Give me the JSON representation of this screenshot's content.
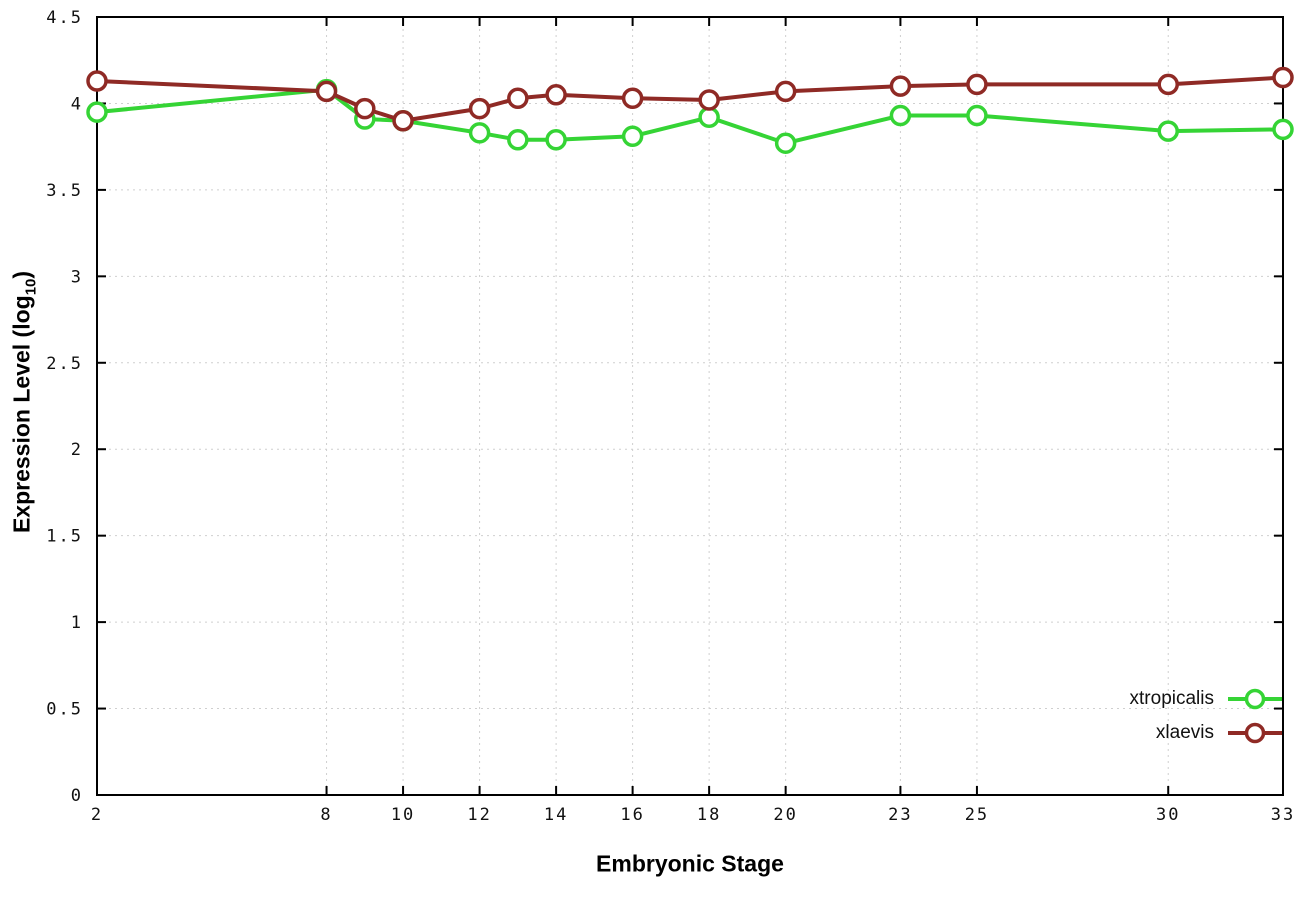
{
  "chart_data": {
    "type": "line",
    "title": "",
    "xlabel": "Embryonic Stage",
    "ylabel_prefix": "Expression Level (log",
    "ylabel_sub": "10",
    "ylabel_suffix": ")",
    "xlim": [
      2,
      33
    ],
    "ylim": [
      0,
      4.5
    ],
    "x_ticks": [
      2,
      8,
      10,
      12,
      14,
      16,
      18,
      20,
      23,
      25,
      30,
      33
    ],
    "y_ticks": [
      0,
      0.5,
      1,
      1.5,
      2,
      2.5,
      3,
      3.5,
      4,
      4.5
    ],
    "y_tick_labels": [
      "0",
      "0.5",
      "1",
      "1.5",
      "2",
      "2.5",
      "3",
      "3.5",
      "4",
      "4.5"
    ],
    "grid": true,
    "legend_position": "bottom-right",
    "x": [
      2,
      8,
      9,
      10,
      12,
      13,
      14,
      16,
      18,
      20,
      23,
      25,
      30,
      33
    ],
    "series": [
      {
        "name": "xtropicalis",
        "color": "#35d435",
        "values": [
          3.95,
          4.08,
          3.91,
          3.9,
          3.83,
          3.79,
          3.79,
          3.81,
          3.92,
          3.77,
          3.93,
          3.93,
          3.84,
          3.85
        ]
      },
      {
        "name": "xlaevis",
        "color": "#8f2a25",
        "values": [
          4.13,
          4.07,
          3.97,
          3.9,
          3.97,
          4.03,
          4.05,
          4.03,
          4.02,
          4.07,
          4.1,
          4.11,
          4.11,
          4.15
        ]
      }
    ]
  }
}
